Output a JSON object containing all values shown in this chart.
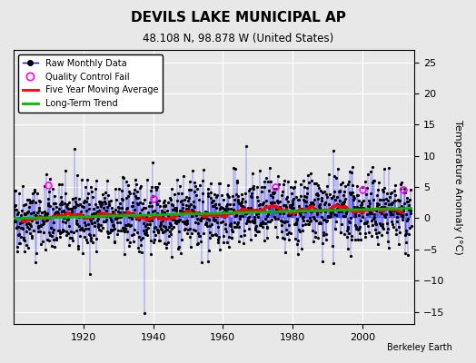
{
  "title": "DEVILS LAKE MUNICIPAL AP",
  "subtitle": "48.108 N, 98.878 W (United States)",
  "ylabel": "Temperature Anomaly (°C)",
  "attribution": "Berkeley Earth",
  "ylim": [
    -17,
    27
  ],
  "yticks": [
    -15,
    -10,
    -5,
    0,
    5,
    10,
    15,
    20,
    25
  ],
  "xlim": [
    1900,
    2015
  ],
  "xticks": [
    1920,
    1940,
    1960,
    1980,
    2000
  ],
  "start_year": 1900,
  "end_year": 2014,
  "background_color": "#e8e8e8",
  "plot_bg_color": "#e8e8e8",
  "grid_color": "#ffffff",
  "raw_line_color": "#0000ff",
  "raw_dot_color": "#000000",
  "qc_fail_color": "#ff00ff",
  "moving_avg_color": "#ff0000",
  "trend_color": "#00bb00",
  "seed": 42
}
